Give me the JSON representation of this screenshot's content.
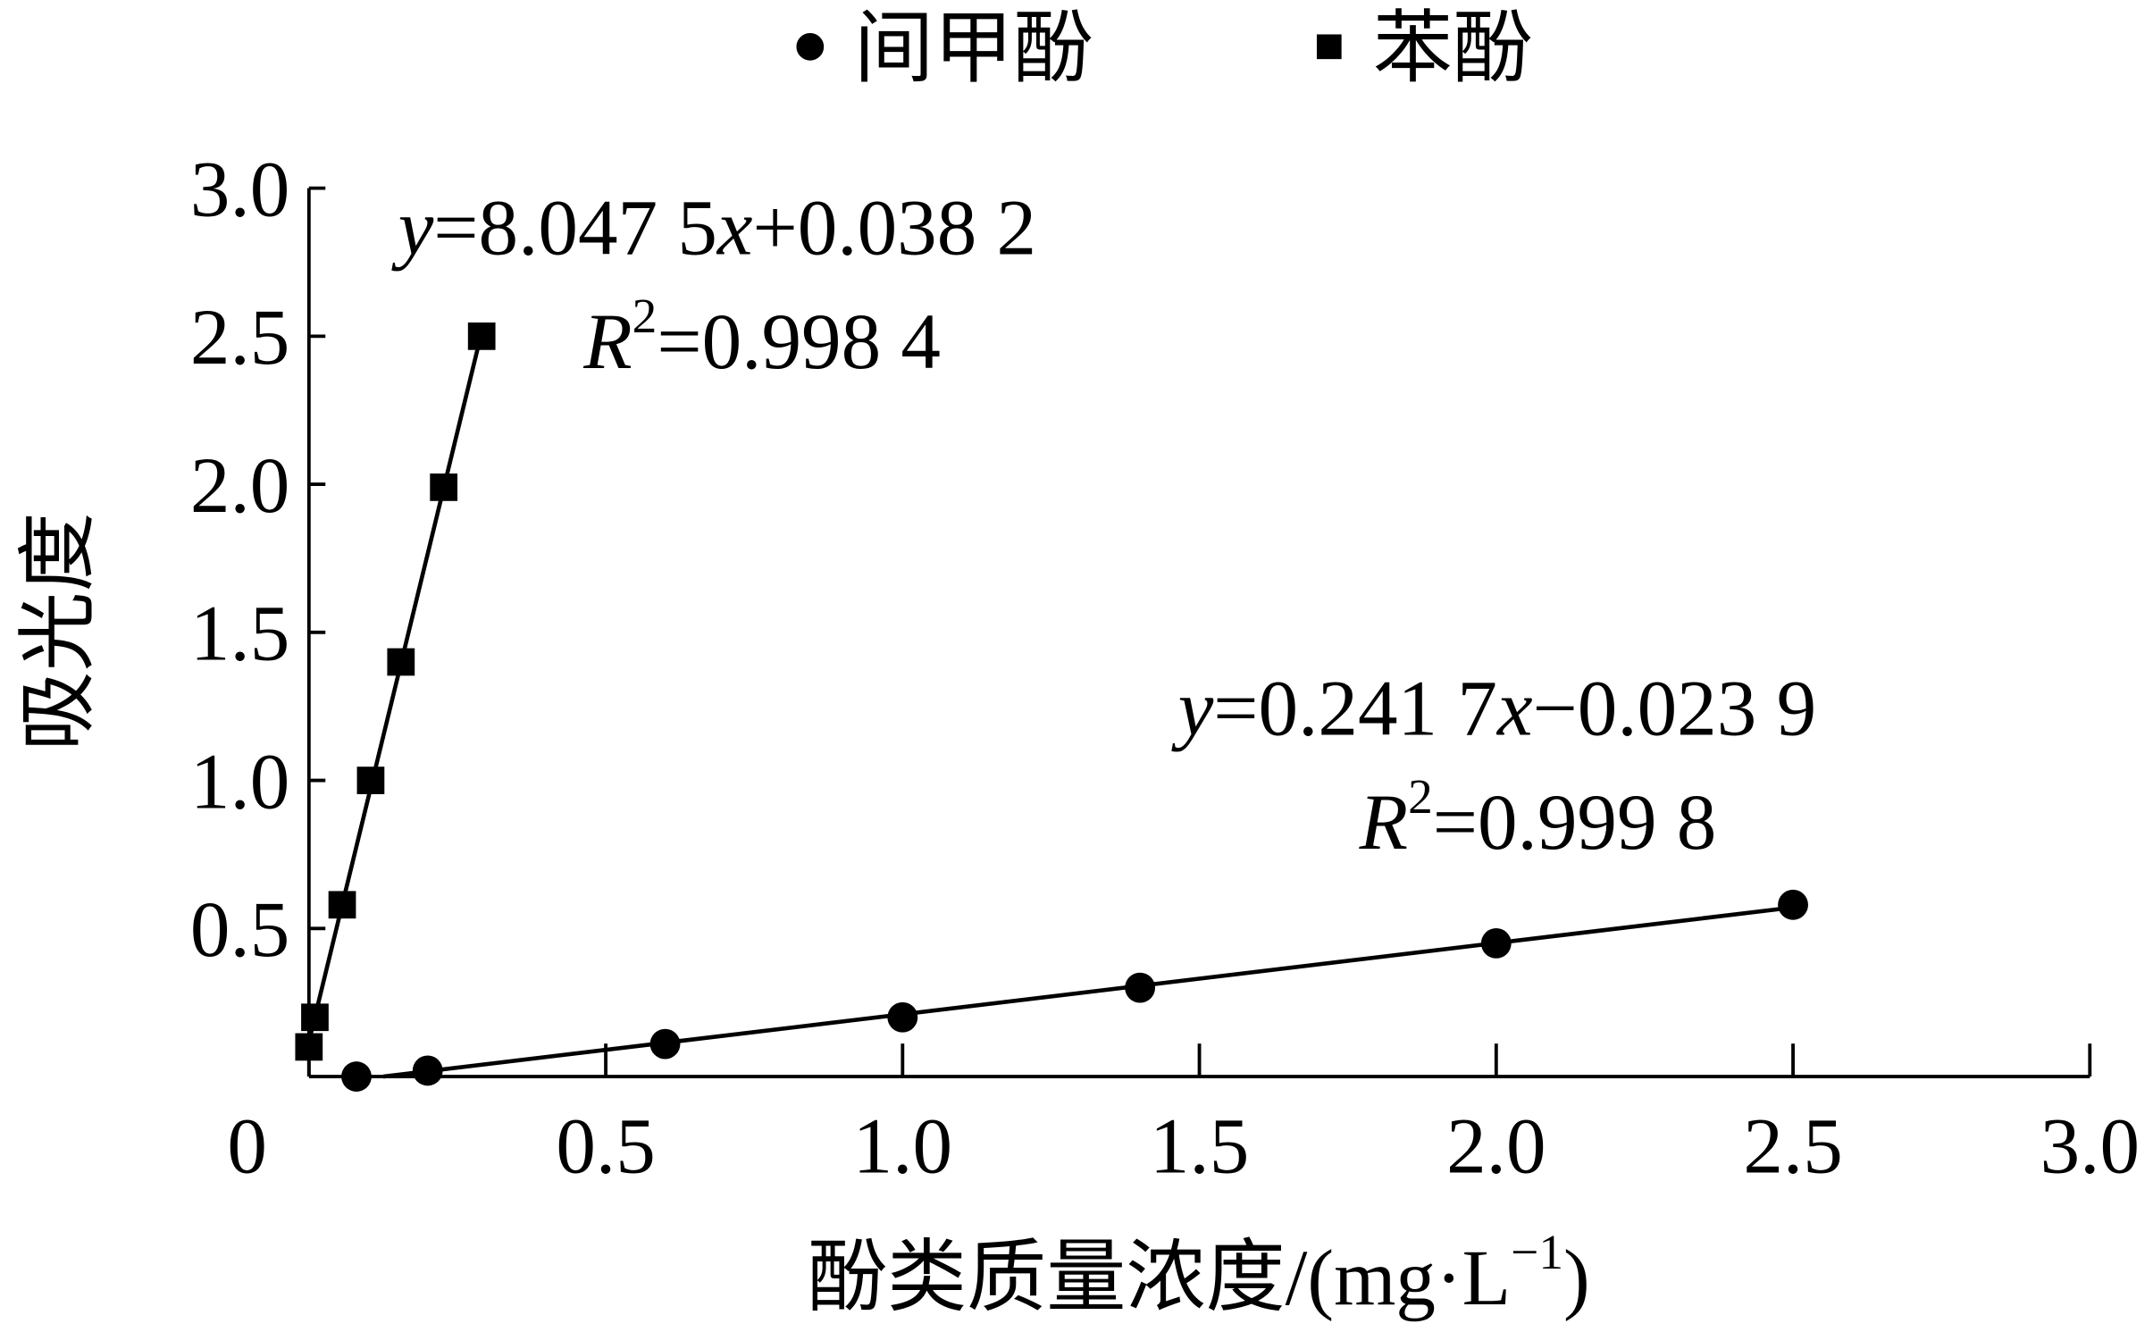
{
  "chart_data": {
    "type": "scatter",
    "legend": "top",
    "xlabel": [
      "酚类质量浓度/(mg·L",
      "−1",
      ")"
    ],
    "ylabel": "吸光度",
    "xlim": [
      0,
      3
    ],
    "ylim": [
      0,
      3
    ],
    "xticks": [
      0,
      0.5,
      {
        "value": 1,
        "label": "1.0"
      },
      1.5,
      {
        "value": 2,
        "label": "2.0"
      },
      2.5,
      {
        "value": 3,
        "label": "3.0"
      }
    ],
    "yticks": [
      0.5,
      {
        "value": 1,
        "label": "1.0"
      },
      1.5,
      {
        "value": 2,
        "label": "2.0"
      },
      2.5,
      {
        "value": 3,
        "label": "3.0"
      }
    ],
    "series": [
      {
        "name": "间甲酚",
        "marker": "circle",
        "color": "#000000",
        "x": [
          0.08,
          0.2,
          0.6,
          1.0,
          1.4,
          2.0,
          2.5
        ],
        "values": [
          0,
          0.02,
          0.11,
          0.2,
          0.3,
          0.45,
          0.58
        ],
        "annotation": [
          [
            "y",
            "=0.241 7",
            "x",
            "−0.023 9"
          ],
          [
            "R",
            "2",
            "=0.999 8"
          ]
        ]
      },
      {
        "name": "苯酚",
        "marker": "square",
        "color": "#000000",
        "x": [
          0,
          0.01,
          0.056,
          0.104,
          0.155,
          0.227,
          0.291
        ],
        "values": [
          0.1,
          0.2,
          0.58,
          1.0,
          1.4,
          1.99,
          2.5
        ],
        "annotation": [
          [
            "y",
            "=8.047 5",
            "x",
            "+0.038 2"
          ],
          [
            "R",
            "2",
            "=0.998 4"
          ]
        ]
      }
    ]
  }
}
